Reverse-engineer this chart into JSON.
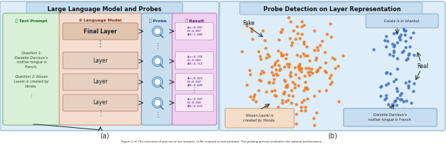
{
  "fig_width": 6.4,
  "fig_height": 2.13,
  "dpi": 100,
  "bg_color": "#ffffff",
  "panel_a": {
    "title": "Large Language Model and Probes",
    "title_bg": "#c5ddef",
    "outer_bg": "#ddeefa",
    "outer_border": "#9bbbd4",
    "text_prompt_bg": "#d8f0d8",
    "text_prompt_border": "#90c090",
    "text_prompt_label": "Text Prompt",
    "lm_bg": "#f5ddd0",
    "lm_border": "#d4a080",
    "lm_label": "Language Model",
    "layer_bg": "#e8c8b8",
    "layer_border": "#b89080",
    "layers": [
      "Final Layer",
      "Layer",
      "Layer",
      "Layer"
    ],
    "probe_label": "Probe",
    "probe_bg": "#c8dff0",
    "probe_border": "#80aac8",
    "result_label": "Result",
    "result_bg": "#f0d0f0",
    "result_border": "#c090c0",
    "result_box_bg": "#f8e8f8",
    "result_box_border": "#c0a0c0",
    "result_boxes": [
      [
        "Acc:0.997",
        "F1:0.997",
        "AUC:1.000"
      ],
      [
        "Acc:0.718",
        "F1:0.683",
        "AUC:0.712"
      ],
      [
        "Acc:0.623",
        "F1:0.632",
        "AUC:0.699"
      ],
      [
        "Acc:0.597",
        "F1:0.598",
        "AUC:0.631"
      ]
    ],
    "label_a": "(a)"
  },
  "panel_b": {
    "title": "Probe Detection on Layer Representation",
    "title_bg": "#c5ddef",
    "outer_bg": "#ddeefa",
    "outer_border": "#9bbbd4",
    "fake_color": "#f47a20",
    "real_color": "#4472c4",
    "fake_label": "Fake",
    "real_label": "Real",
    "fake_caption": "Nissan Laurel is\ncreated by Honda.",
    "fake_caption_bg": "#f5ddc8",
    "fake_caption_border": "#d4a878",
    "real_caption": "Danielle Darrieux's\nmother tongue is French.",
    "real_caption_bg": "#c8ddf0",
    "real_caption_border": "#80aac8",
    "galata_text": "Galata is in Istanbul.",
    "galata_bg": "#c8ddf0",
    "galata_border": "#80aac8",
    "label_b": "(b)"
  },
  "figure_caption": "Figure 1: a) The overview of process of our analysis. LLMs respond to text prompts. The probing process evaluates the optimal performance..."
}
